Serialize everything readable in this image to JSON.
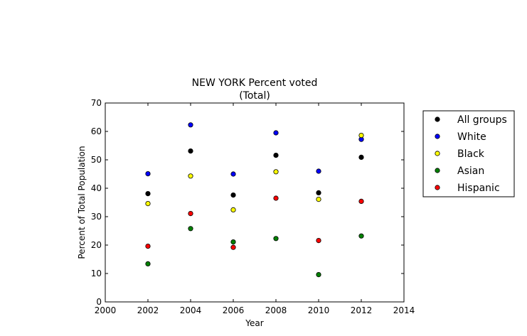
{
  "chart_data": {
    "type": "scatter",
    "title": "NEW YORK Percent voted",
    "subtitle": "(Total)",
    "xlabel": "Year",
    "ylabel": "Percent of Total Population",
    "xlim": [
      2000,
      2014
    ],
    "ylim": [
      0,
      70
    ],
    "xticks": [
      2000,
      2002,
      2004,
      2006,
      2008,
      2010,
      2012,
      2014
    ],
    "yticks": [
      0,
      10,
      20,
      30,
      40,
      50,
      60,
      70
    ],
    "grid": false,
    "legend_position": "right",
    "x": [
      2002,
      2004,
      2006,
      2008,
      2010,
      2012
    ],
    "series": [
      {
        "name": "All groups",
        "color": "#000000",
        "values": [
          38.1,
          53.1,
          37.6,
          51.6,
          38.4,
          50.9
        ]
      },
      {
        "name": "White",
        "color": "#0000ff",
        "values": [
          45.1,
          62.3,
          45.0,
          59.5,
          46.0,
          57.2
        ]
      },
      {
        "name": "Black",
        "color": "#ffff00",
        "values": [
          34.6,
          44.3,
          32.4,
          45.8,
          36.1,
          58.6
        ]
      },
      {
        "name": "Asian",
        "color": "#008000",
        "values": [
          13.4,
          25.8,
          21.1,
          22.3,
          9.6,
          23.2
        ]
      },
      {
        "name": "Hispanic",
        "color": "#ff0000",
        "values": [
          19.6,
          31.1,
          19.2,
          36.5,
          21.6,
          35.4
        ]
      }
    ]
  }
}
